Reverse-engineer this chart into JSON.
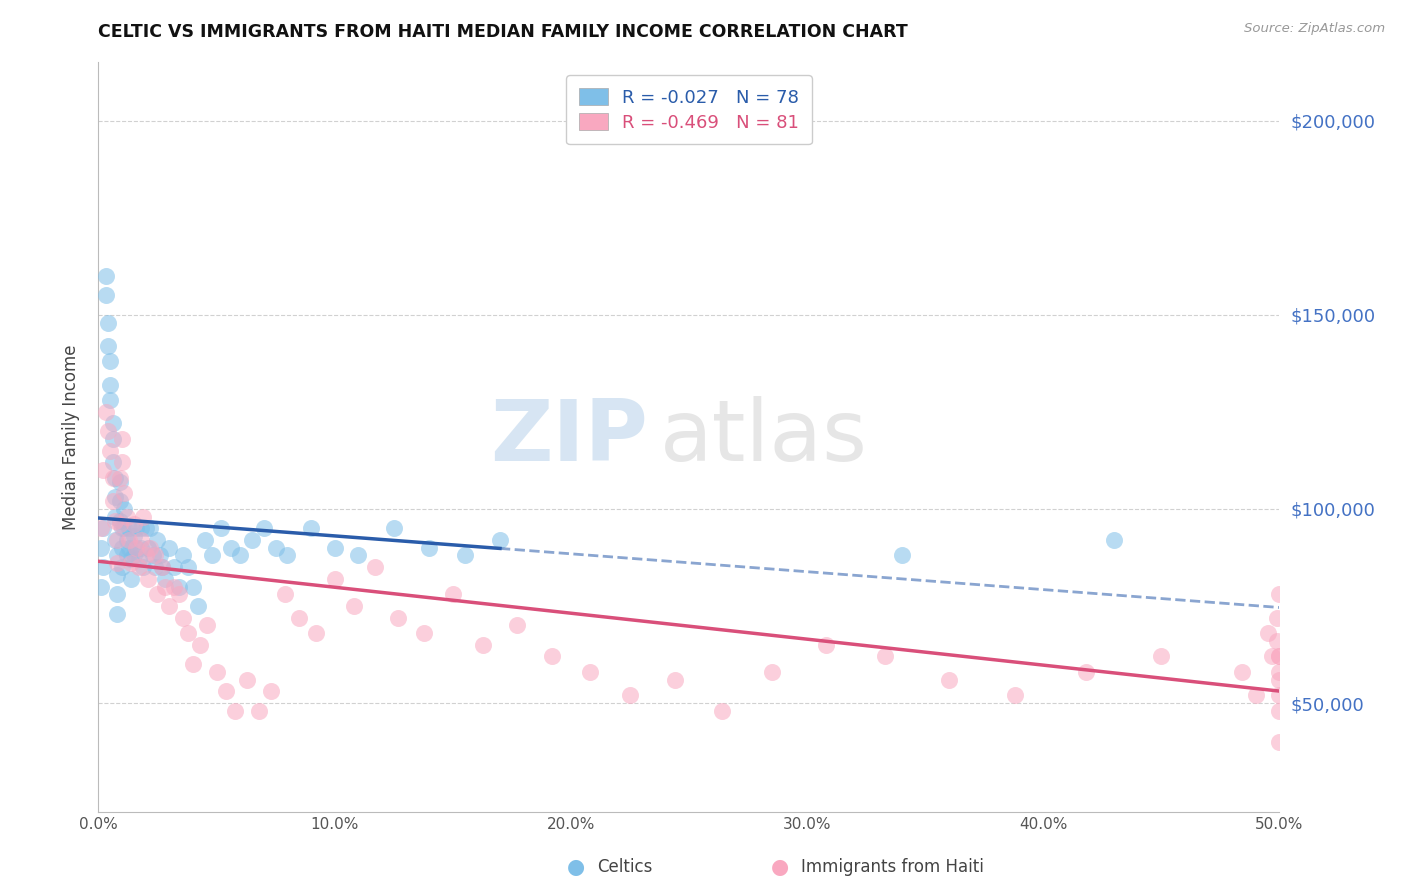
{
  "title": "CELTIC VS IMMIGRANTS FROM HAITI MEDIAN FAMILY INCOME CORRELATION CHART",
  "source": "Source: ZipAtlas.com",
  "ylabel": "Median Family Income",
  "blue_color": "#7fbfe8",
  "pink_color": "#f9a8c0",
  "line_blue": "#2a5caa",
  "line_pink": "#d94f7a",
  "right_ytick_color": "#4472c4",
  "yticks": [
    50000,
    100000,
    150000,
    200000
  ],
  "right_yticklabels": [
    "$50,000",
    "$100,000",
    "$150,000",
    "$200,000"
  ],
  "xticks": [
    0.0,
    0.1,
    0.2,
    0.3,
    0.4,
    0.5
  ],
  "xtick_labels": [
    "0.0%",
    "10.0%",
    "20.0%",
    "30.0%",
    "40.0%",
    "50.0%"
  ],
  "xlim": [
    0.0,
    0.5
  ],
  "ylim": [
    22000,
    215000
  ],
  "legend_labels": [
    "R = -0.027   N = 78",
    "R = -0.469   N = 81"
  ],
  "legend_text_colors": [
    "#2a5caa",
    "#d94f7a"
  ],
  "bottom_legend": [
    "Celtics",
    "Immigrants from Haiti"
  ],
  "bottom_legend_colors": [
    "#7fbfe8",
    "#f9a8c0"
  ],
  "celtics_x": [
    0.001,
    0.001,
    0.002,
    0.002,
    0.003,
    0.003,
    0.004,
    0.004,
    0.005,
    0.005,
    0.005,
    0.006,
    0.006,
    0.006,
    0.007,
    0.007,
    0.007,
    0.007,
    0.008,
    0.008,
    0.008,
    0.008,
    0.009,
    0.009,
    0.009,
    0.01,
    0.01,
    0.01,
    0.011,
    0.011,
    0.012,
    0.012,
    0.013,
    0.013,
    0.014,
    0.014,
    0.015,
    0.015,
    0.016,
    0.016,
    0.017,
    0.018,
    0.018,
    0.019,
    0.02,
    0.021,
    0.022,
    0.023,
    0.024,
    0.025,
    0.026,
    0.027,
    0.028,
    0.03,
    0.032,
    0.034,
    0.036,
    0.038,
    0.04,
    0.042,
    0.045,
    0.048,
    0.052,
    0.056,
    0.06,
    0.065,
    0.07,
    0.075,
    0.08,
    0.09,
    0.1,
    0.11,
    0.125,
    0.14,
    0.155,
    0.17,
    0.34,
    0.43
  ],
  "celtics_y": [
    90000,
    80000,
    95000,
    85000,
    160000,
    155000,
    148000,
    142000,
    138000,
    132000,
    128000,
    122000,
    118000,
    112000,
    108000,
    103000,
    98000,
    92000,
    88000,
    83000,
    78000,
    73000,
    107000,
    102000,
    97000,
    95000,
    90000,
    85000,
    100000,
    95000,
    92000,
    88000,
    95000,
    90000,
    87000,
    82000,
    93000,
    88000,
    95000,
    90000,
    87000,
    95000,
    90000,
    85000,
    95000,
    90000,
    95000,
    88000,
    85000,
    92000,
    88000,
    85000,
    82000,
    90000,
    85000,
    80000,
    88000,
    85000,
    80000,
    75000,
    92000,
    88000,
    95000,
    90000,
    88000,
    92000,
    95000,
    90000,
    88000,
    95000,
    90000,
    88000,
    95000,
    90000,
    88000,
    92000,
    88000,
    92000
  ],
  "haiti_x": [
    0.001,
    0.002,
    0.003,
    0.004,
    0.005,
    0.006,
    0.006,
    0.007,
    0.008,
    0.008,
    0.009,
    0.009,
    0.01,
    0.01,
    0.011,
    0.012,
    0.013,
    0.014,
    0.015,
    0.016,
    0.017,
    0.018,
    0.019,
    0.02,
    0.021,
    0.022,
    0.024,
    0.025,
    0.027,
    0.028,
    0.03,
    0.032,
    0.034,
    0.036,
    0.038,
    0.04,
    0.043,
    0.046,
    0.05,
    0.054,
    0.058,
    0.063,
    0.068,
    0.073,
    0.079,
    0.085,
    0.092,
    0.1,
    0.108,
    0.117,
    0.127,
    0.138,
    0.15,
    0.163,
    0.177,
    0.192,
    0.208,
    0.225,
    0.244,
    0.264,
    0.285,
    0.308,
    0.333,
    0.36,
    0.388,
    0.418,
    0.45,
    0.484,
    0.49,
    0.495,
    0.497,
    0.499,
    0.499,
    0.5,
    0.5,
    0.5,
    0.5,
    0.5,
    0.5,
    0.5,
    0.5
  ],
  "haiti_y": [
    95000,
    110000,
    125000,
    120000,
    115000,
    108000,
    102000,
    97000,
    92000,
    86000,
    108000,
    96000,
    118000,
    112000,
    104000,
    98000,
    92000,
    86000,
    96000,
    90000,
    85000,
    92000,
    98000,
    88000,
    82000,
    90000,
    88000,
    78000,
    85000,
    80000,
    75000,
    80000,
    78000,
    72000,
    68000,
    60000,
    65000,
    70000,
    58000,
    53000,
    48000,
    56000,
    48000,
    53000,
    78000,
    72000,
    68000,
    82000,
    75000,
    85000,
    72000,
    68000,
    78000,
    65000,
    70000,
    62000,
    58000,
    52000,
    56000,
    48000,
    58000,
    65000,
    62000,
    56000,
    52000,
    58000,
    62000,
    58000,
    52000,
    68000,
    62000,
    72000,
    66000,
    62000,
    56000,
    78000,
    62000,
    58000,
    52000,
    48000,
    40000
  ]
}
